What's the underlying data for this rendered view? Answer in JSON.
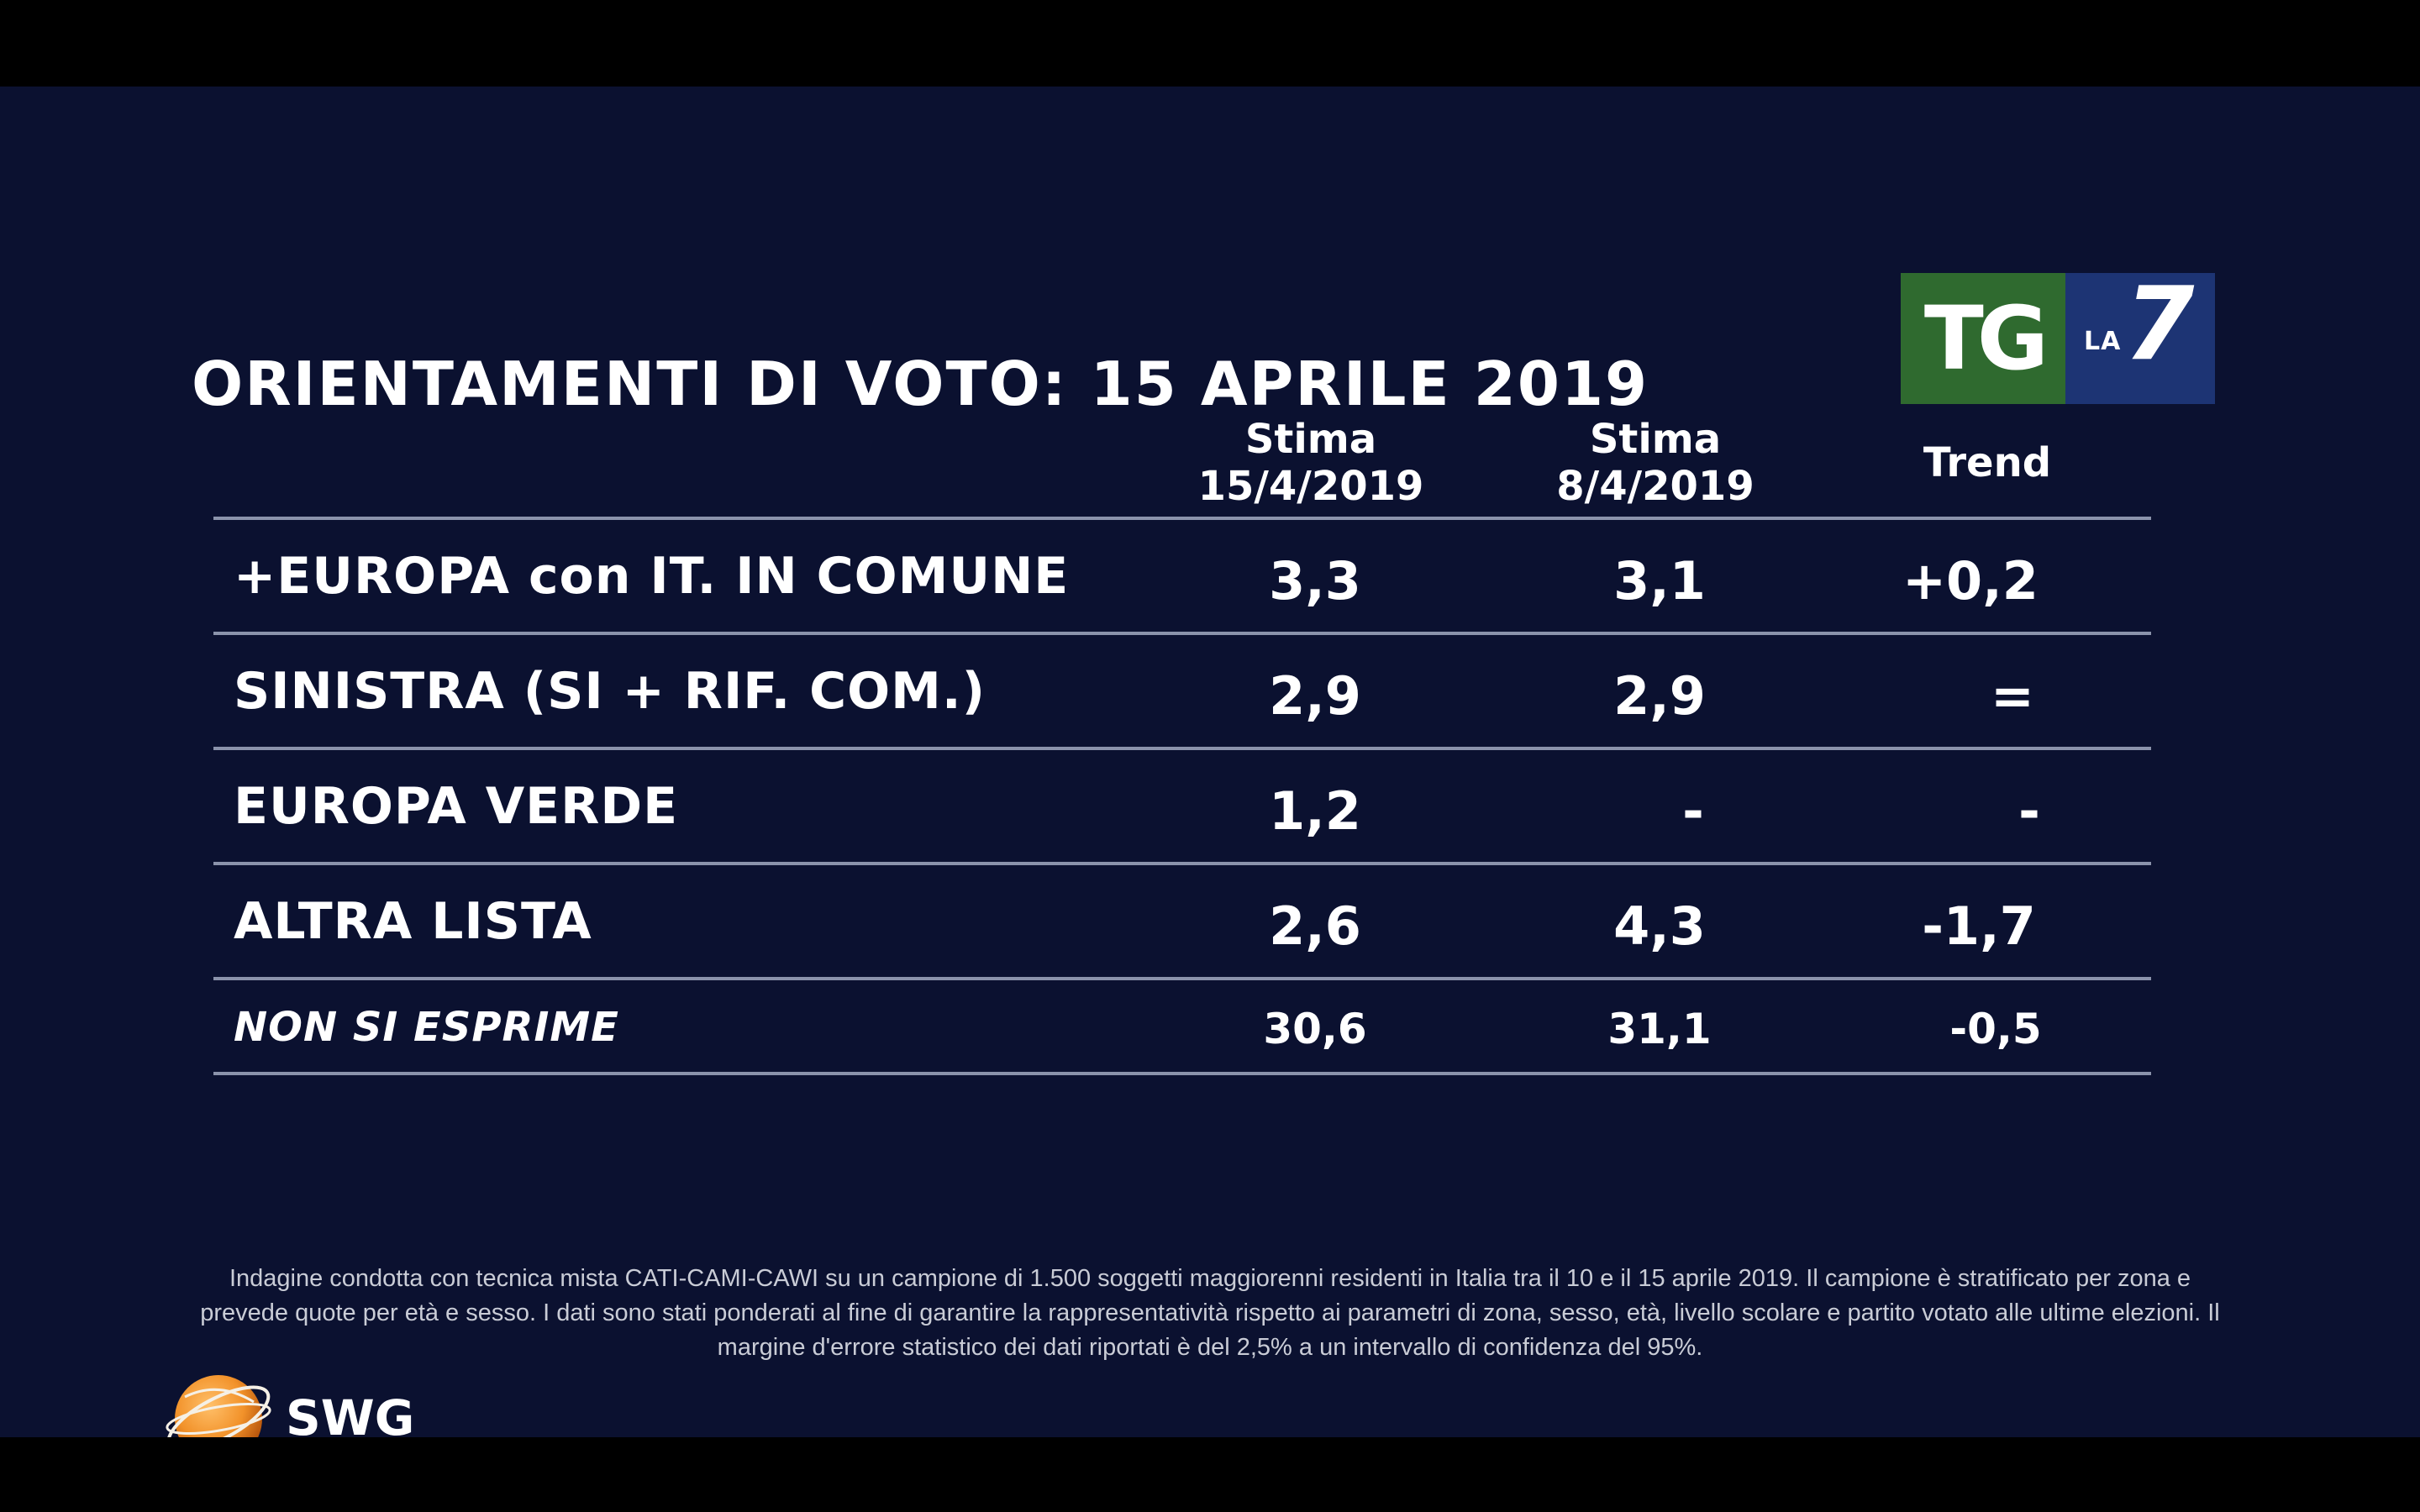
{
  "title": "ORIENTAMENTI DI VOTO: 15 APRILE 2019",
  "broadcaster_logo": {
    "left": "TG",
    "small": "LA",
    "number": "7"
  },
  "pollster_logo": {
    "text": "SWG"
  },
  "colors": {
    "background": "#0b1130",
    "tg_green": "#2f6a2f",
    "la7_blue": "#1d3474",
    "swg_orange": "#f2922a"
  },
  "chart_data": {
    "type": "table",
    "title": "ORIENTAMENTI DI VOTO: 15 APRILE 2019",
    "columns": [
      {
        "line1": "Stima",
        "line2": "15/4/2019"
      },
      {
        "line1": "Stima",
        "line2": "8/4/2019"
      },
      {
        "line1": "Trend",
        "line2": ""
      }
    ],
    "rows": [
      {
        "label": "+EUROPA con IT. IN COMUNE",
        "stima_15_4": "3,3",
        "stima_8_4": "3,1",
        "trend": "+0,2"
      },
      {
        "label": "SINISTRA (SI + RIF. COM.)",
        "stima_15_4": "2,9",
        "stima_8_4": "2,9",
        "trend": "="
      },
      {
        "label": "EUROPA VERDE",
        "stima_15_4": "1,2",
        "stima_8_4": "-",
        "trend": "-"
      },
      {
        "label": "ALTRA LISTA",
        "stima_15_4": "2,6",
        "stima_8_4": "4,3",
        "trend": "-1,7"
      },
      {
        "label": "NON SI ESPRIME",
        "stima_15_4": "30,6",
        "stima_8_4": "31,1",
        "trend": "-0,5"
      }
    ]
  },
  "footnote": "Indagine condotta con tecnica mista CATI-CAMI-CAWI su un campione di 1.500 soggetti maggiorenni residenti in Italia tra il 10 e il 15 aprile 2019. Il campione è stratificato per zona e prevede quote per età e sesso. I dati sono stati ponderati al fine di garantire la rappresentatività rispetto ai parametri di zona, sesso, età, livello scolare e partito votato alle ultime elezioni. Il margine d'errore statistico dei dati riportati è del 2,5% a un intervallo di confidenza del 95%."
}
